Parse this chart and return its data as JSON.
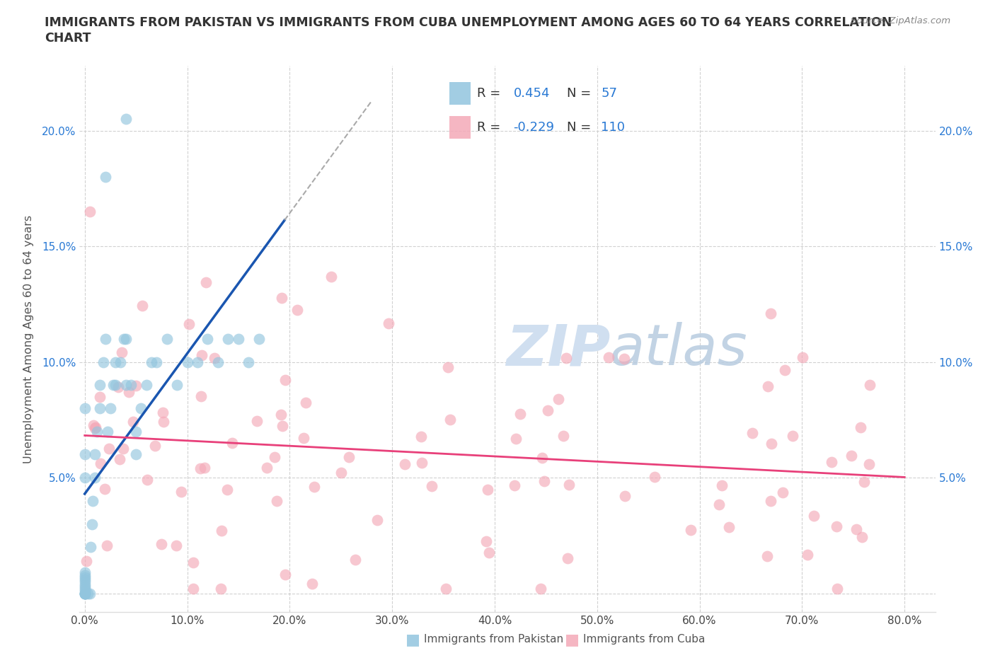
{
  "title_line1": "IMMIGRANTS FROM PAKISTAN VS IMMIGRANTS FROM CUBA UNEMPLOYMENT AMONG AGES 60 TO 64 YEARS CORRELATION",
  "title_line2": "CHART",
  "source": "Source: ZipAtlas.com",
  "ylabel": "Unemployment Among Ages 60 to 64 years",
  "xlim": [
    -0.005,
    0.83
  ],
  "ylim": [
    -0.008,
    0.228
  ],
  "xticks": [
    0.0,
    0.1,
    0.2,
    0.3,
    0.4,
    0.5,
    0.6,
    0.7,
    0.8
  ],
  "xticklabels": [
    "0.0%",
    "10.0%",
    "20.0%",
    "30.0%",
    "40.0%",
    "50.0%",
    "60.0%",
    "70.0%",
    "80.0%"
  ],
  "yticks": [
    0.0,
    0.05,
    0.1,
    0.15,
    0.2
  ],
  "yticklabels_left": [
    "",
    "5.0%",
    "10.0%",
    "15.0%",
    "20.0%"
  ],
  "pakistan_color": "#92c5de",
  "cuba_color": "#f4a9b8",
  "pakistan_line_color": "#1a56b0",
  "cuba_line_color": "#e8407a",
  "dashed_line_color": "#aaaaaa",
  "R_pakistan": 0.454,
  "N_pakistan": 57,
  "R_cuba": -0.229,
  "N_cuba": 110,
  "blue_text_color": "#2979d4",
  "label_color": "#444444",
  "tick_color": "#2979d4",
  "watermark_color": "#d0dff0"
}
